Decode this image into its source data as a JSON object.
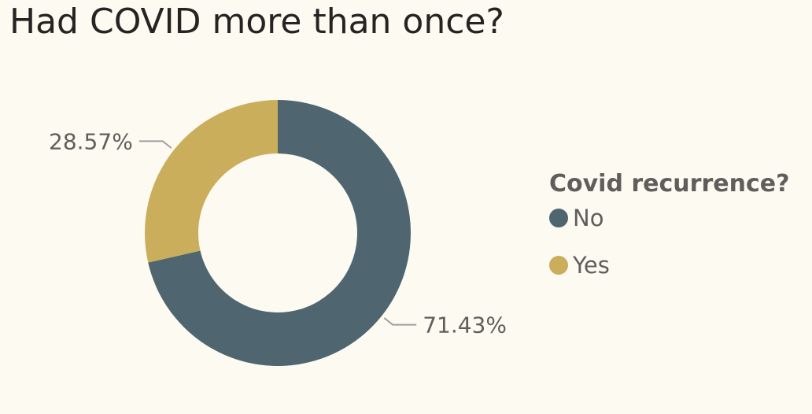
{
  "title": "Had COVID more than once?",
  "chart_data": {
    "type": "pie",
    "donut": true,
    "legend_title": "Covid recurrence?",
    "legend_position": "right",
    "slices": [
      {
        "label": "No",
        "value": 71.43,
        "display": "71.43%",
        "color": "#4f6670"
      },
      {
        "label": "Yes",
        "value": 28.57,
        "display": "28.57%",
        "color": "#cbae5c"
      }
    ]
  }
}
